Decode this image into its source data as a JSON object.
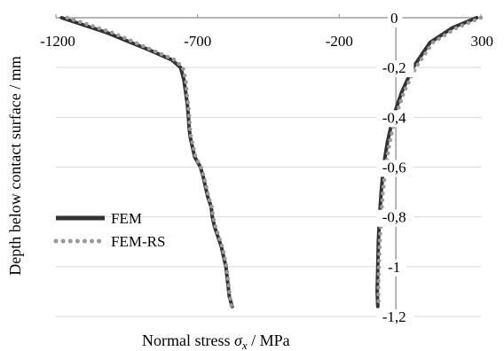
{
  "chart_data": {
    "type": "line",
    "title": "",
    "xlabel_prefix": "Normal stress ",
    "xlabel_symbol": "σ",
    "xlabel_subscript": "x",
    "xlabel_suffix": " / MPa",
    "ylabel": "Depth below contact surface / mm",
    "xlim": [
      -1200,
      300
    ],
    "ylim": [
      -1.2,
      0
    ],
    "x_ticks": [
      {
        "value": -1200,
        "label": "-1200"
      },
      {
        "value": -700,
        "label": "-700"
      },
      {
        "value": -200,
        "label": "-200"
      },
      {
        "value": 300,
        "label": "300"
      }
    ],
    "y_ticks": [
      {
        "value": 0,
        "label": "0"
      },
      {
        "value": -0.2,
        "label": "-0,2"
      },
      {
        "value": -0.4,
        "label": "-0,4"
      },
      {
        "value": -0.6,
        "label": "-0,6"
      },
      {
        "value": -0.8,
        "label": "-0,8"
      },
      {
        "value": -1,
        "label": "-1"
      },
      {
        "value": -1.2,
        "label": "-1,2"
      }
    ],
    "grid": "horizontal",
    "legend_position": "left",
    "series": [
      {
        "name": "FEM",
        "style": "solid",
        "color": "#333333",
        "branches": [
          [
            [
              -1180,
              0
            ],
            [
              -1020,
              -0.06
            ],
            [
              -870,
              -0.13
            ],
            [
              -790,
              -0.17
            ],
            [
              -760,
              -0.2
            ],
            [
              -748,
              -0.25
            ],
            [
              -742,
              -0.3
            ],
            [
              -736,
              -0.35
            ],
            [
              -732,
              -0.4
            ],
            [
              -730,
              -0.44
            ],
            [
              -726,
              -0.48
            ],
            [
              -718,
              -0.52
            ],
            [
              -710,
              -0.56
            ],
            [
              -690,
              -0.6
            ],
            [
              -680,
              -0.64
            ],
            [
              -672,
              -0.68
            ],
            [
              -664,
              -0.72
            ],
            [
              -652,
              -0.76
            ],
            [
              -648,
              -0.8
            ],
            [
              -640,
              -0.84
            ],
            [
              -628,
              -0.88
            ],
            [
              -616,
              -0.92
            ],
            [
              -608,
              -0.96
            ],
            [
              -600,
              -1.0
            ],
            [
              -596,
              -1.04
            ],
            [
              -592,
              -1.08
            ],
            [
              -588,
              -1.12
            ],
            [
              -578,
              -1.16
            ]
          ],
          [
            [
              285,
              0
            ],
            [
              200,
              -0.04
            ],
            [
              120,
              -0.1
            ],
            [
              60,
              -0.2
            ],
            [
              20,
              -0.3
            ],
            [
              -10,
              -0.4
            ],
            [
              -30,
              -0.5
            ],
            [
              -44,
              -0.6
            ],
            [
              -52,
              -0.7
            ],
            [
              -58,
              -0.8
            ],
            [
              -62,
              -0.9
            ],
            [
              -64,
              -1.0
            ],
            [
              -66,
              -1.1
            ],
            [
              -64,
              -1.16
            ]
          ]
        ]
      },
      {
        "name": "FEM-RS",
        "style": "dotted",
        "color": "#9a9a9a",
        "branches": [
          [
            [
              -1160,
              0
            ],
            [
              -1000,
              -0.06
            ],
            [
              -860,
              -0.13
            ],
            [
              -780,
              -0.17
            ],
            [
              -752,
              -0.2
            ],
            [
              -742,
              -0.25
            ],
            [
              -738,
              -0.3
            ],
            [
              -733,
              -0.35
            ],
            [
              -729,
              -0.4
            ],
            [
              -727,
              -0.44
            ],
            [
              -723,
              -0.48
            ],
            [
              -715,
              -0.52
            ],
            [
              -707,
              -0.56
            ],
            [
              -688,
              -0.6
            ],
            [
              -678,
              -0.64
            ],
            [
              -669,
              -0.68
            ],
            [
              -661,
              -0.72
            ],
            [
              -650,
              -0.76
            ],
            [
              -645,
              -0.8
            ],
            [
              -637,
              -0.84
            ],
            [
              -625,
              -0.88
            ],
            [
              -613,
              -0.92
            ],
            [
              -605,
              -0.96
            ],
            [
              -598,
              -1.0
            ],
            [
              -594,
              -1.04
            ],
            [
              -590,
              -1.08
            ],
            [
              -586,
              -1.12
            ],
            [
              -580,
              -1.16
            ]
          ],
          [
            [
              300,
              0
            ],
            [
              215,
              -0.04
            ],
            [
              130,
              -0.1
            ],
            [
              70,
              -0.2
            ],
            [
              28,
              -0.3
            ],
            [
              -2,
              -0.4
            ],
            [
              -22,
              -0.5
            ],
            [
              -36,
              -0.6
            ],
            [
              -46,
              -0.7
            ],
            [
              -52,
              -0.8
            ],
            [
              -57,
              -0.9
            ],
            [
              -60,
              -1.0
            ],
            [
              -62,
              -1.1
            ],
            [
              -61,
              -1.16
            ]
          ]
        ]
      }
    ]
  }
}
